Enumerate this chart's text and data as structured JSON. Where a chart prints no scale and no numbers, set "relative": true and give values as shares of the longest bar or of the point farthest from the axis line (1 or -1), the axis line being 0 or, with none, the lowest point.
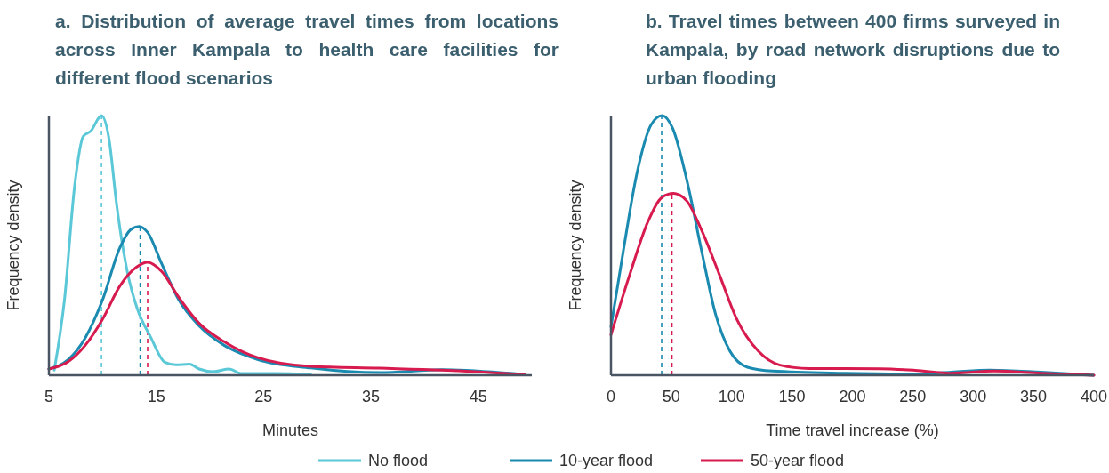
{
  "chart_data": [
    {
      "type": "line",
      "title": "a. Distribution of average travel times from locations across Inner Kampala to health care facilities for different flood scenarios",
      "xlabel": "Minutes",
      "ylabel": "Frequency density",
      "relative": true,
      "xlim": [
        5,
        50
      ],
      "xticks": [
        5,
        15,
        25,
        35,
        45
      ],
      "legend": "bottom",
      "line_style": "solid",
      "marker": "none",
      "grid": false,
      "series": [
        {
          "name": "No flood",
          "color": "#5bc8d8",
          "x": [
            5.5,
            6.45,
            7.4,
            8.2,
            8.9,
            9.9,
            10.6,
            11.3,
            12.3,
            13.2,
            14.5,
            15.8,
            16.8,
            18.1,
            19.0,
            20.3,
            21.8,
            22.9,
            26.1,
            29.4
          ],
          "values": [
            0.02,
            0.29,
            0.73,
            0.92,
            0.94,
            1.0,
            0.91,
            0.66,
            0.4,
            0.26,
            0.145,
            0.05,
            0.04,
            0.043,
            0.024,
            0.014,
            0.024,
            0.007,
            0.007,
            0.003
          ]
        },
        {
          "name": "10-year flood",
          "color": "#1a8ab0",
          "x": [
            5,
            6.8,
            8.4,
            10,
            11.6,
            12.6,
            13.4,
            14.2,
            15.5,
            17.1,
            19.0,
            21.3,
            24.5,
            29.4,
            35.8,
            41.6,
            49.3
          ],
          "values": [
            0.024,
            0.06,
            0.145,
            0.29,
            0.49,
            0.56,
            0.573,
            0.55,
            0.43,
            0.29,
            0.19,
            0.116,
            0.06,
            0.028,
            0.01,
            0.021,
            0.003
          ]
        },
        {
          "name": "50-year flood",
          "color": "#d81b4f",
          "x": [
            5,
            6.8,
            8.4,
            10,
            11.6,
            13.2,
            14.2,
            15.5,
            17.1,
            19.0,
            21.3,
            24.5,
            29.4,
            35.8,
            41.6,
            49.3
          ],
          "values": [
            0.024,
            0.052,
            0.116,
            0.216,
            0.343,
            0.418,
            0.435,
            0.4,
            0.3,
            0.2,
            0.13,
            0.067,
            0.034,
            0.027,
            0.02,
            0.003
          ]
        }
      ],
      "ref_lines": [
        {
          "axis": "x",
          "value": 9.9,
          "color": "#5bc8d8",
          "line_style": "dashed"
        },
        {
          "axis": "x",
          "value": 13.5,
          "color": "#1a8ab0",
          "line_style": "dashed"
        },
        {
          "axis": "x",
          "value": 14.2,
          "color": "#d81b4f",
          "line_style": "dashed"
        }
      ]
    },
    {
      "type": "line",
      "title": "b. Travel times between 400 firms surveyed in Kampala, by road network disruptions due to urban flooding",
      "xlabel": "Time travel increase (%)",
      "ylabel": "Frequency density",
      "relative": true,
      "xlim": [
        0,
        400
      ],
      "xticks": [
        0,
        50,
        100,
        150,
        200,
        250,
        300,
        350,
        400
      ],
      "line_style": "solid",
      "marker": "none",
      "grid": false,
      "series": [
        {
          "color": "#1a8ab0",
          "x": [
            0,
            9.8,
            21.6,
            33.4,
            42.3,
            51.2,
            63,
            74.9,
            86.7,
            98.5,
            113,
            134,
            193,
            252,
            282,
            314,
            356,
            400
          ],
          "values": [
            0.187,
            0.467,
            0.78,
            0.966,
            1.0,
            0.95,
            0.748,
            0.483,
            0.234,
            0.093,
            0.031,
            0.016,
            0.008,
            0.005,
            0.012,
            0.02,
            0.012,
            0
          ]
        },
        {
          "color": "#d81b4f",
          "x": [
            0,
            15.7,
            30.5,
            42.3,
            51.8,
            63,
            74.9,
            89.6,
            104,
            122,
            140,
            164,
            223,
            252,
            282,
            317,
            356,
            400
          ],
          "values": [
            0.156,
            0.39,
            0.59,
            0.685,
            0.7,
            0.67,
            0.56,
            0.39,
            0.218,
            0.093,
            0.039,
            0.026,
            0.025,
            0.019,
            0.008,
            0.016,
            0.008,
            0
          ]
        }
      ],
      "ref_lines": [
        {
          "axis": "x",
          "value": 42,
          "color": "#1a8ab0",
          "line_style": "dashed"
        },
        {
          "axis": "x",
          "value": 50.5,
          "color": "#d81b4f",
          "line_style": "dashed"
        }
      ]
    }
  ]
}
